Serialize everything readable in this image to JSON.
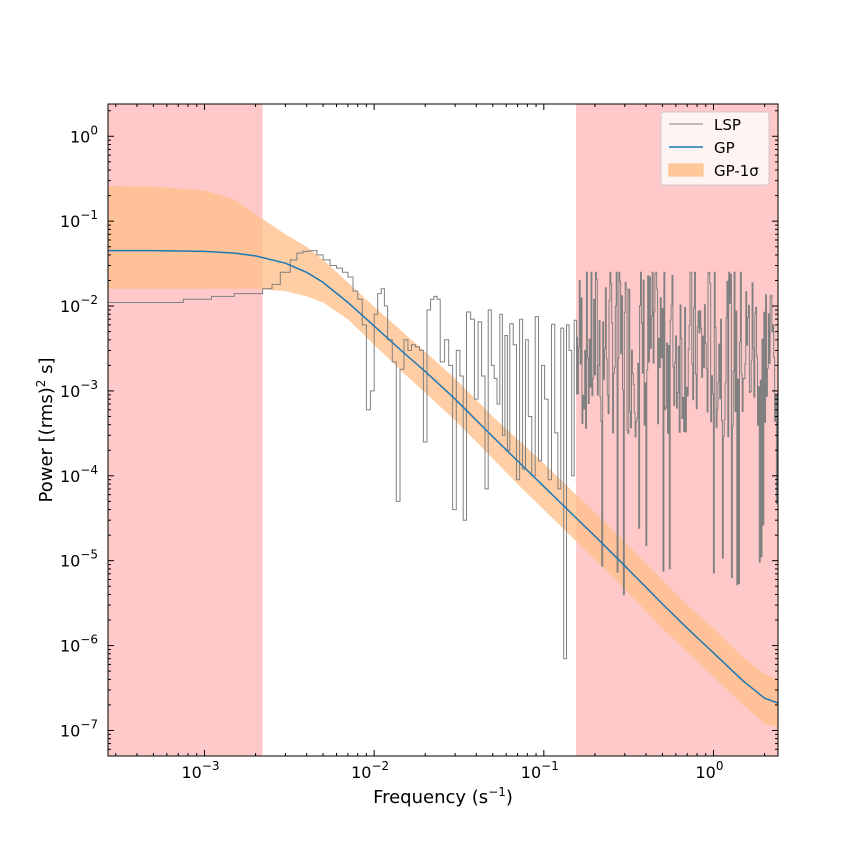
{
  "chart_data": {
    "type": "line",
    "title": "",
    "xlabel": "Frequency (s$^{-1}$)",
    "ylabel": "Power [(rms)$^2$ s]",
    "xscale": "log",
    "yscale": "log",
    "xlim": [
      0.00027,
      2.4
    ],
    "ylim": [
      5e-08,
      2.4
    ],
    "grid": false,
    "legend_position": "top-right",
    "x_tick_labels": [
      "10^-3",
      "10^-2",
      "10^-1",
      "10^0"
    ],
    "y_tick_labels": [
      "10^-7",
      "10^-6",
      "10^-5",
      "10^-4",
      "10^-3",
      "10^-2",
      "10^-1",
      "10^0"
    ],
    "shaded_regions": [
      {
        "x_start": 0.00027,
        "x_end": 0.0022,
        "color": "#ffc9c9"
      },
      {
        "x_start": 0.155,
        "x_end": 2.4,
        "color": "#ffc9c9"
      }
    ],
    "series": [
      {
        "name": "LSP",
        "kind": "step",
        "color": "#808080",
        "x": [
          0.00027,
          0.00075,
          0.0011,
          0.0015,
          0.0022,
          0.0025,
          0.0028,
          0.0032,
          0.0035,
          0.0038,
          0.0042,
          0.0046,
          0.005,
          0.0055,
          0.006,
          0.0065,
          0.007,
          0.0075,
          0.008,
          0.0085,
          0.009,
          0.0095,
          0.01,
          0.0105,
          0.011,
          0.0115,
          0.012,
          0.0128,
          0.0135,
          0.0142,
          0.015,
          0.0158,
          0.0166,
          0.0175,
          0.0185,
          0.0195,
          0.0205,
          0.0215,
          0.0225,
          0.0235,
          0.0245,
          0.026,
          0.0275,
          0.029,
          0.0305,
          0.032,
          0.0335,
          0.035,
          0.037,
          0.039,
          0.041,
          0.043,
          0.045,
          0.047,
          0.049,
          0.051,
          0.053,
          0.055,
          0.057,
          0.059,
          0.061,
          0.063,
          0.066,
          0.069,
          0.072,
          0.075,
          0.078,
          0.081,
          0.085,
          0.089,
          0.093,
          0.097,
          0.101,
          0.106,
          0.111,
          0.116,
          0.121,
          0.126,
          0.131,
          0.136,
          0.141,
          0.146,
          0.151,
          0.156
        ],
        "y": [
          0.011,
          0.012,
          0.013,
          0.014,
          0.016,
          0.018,
          0.025,
          0.035,
          0.042,
          0.044,
          0.045,
          0.04,
          0.035,
          0.03,
          0.028,
          0.025,
          0.022,
          0.015,
          0.012,
          0.006,
          0.0006,
          0.001,
          0.008,
          0.014,
          0.016,
          0.01,
          0.004,
          0.0022,
          5e-05,
          0.0018,
          0.004,
          0.003,
          0.0035,
          0.0033,
          0.003,
          0.00025,
          0.009,
          0.012,
          0.013,
          0.012,
          0.0022,
          0.004,
          0.002,
          4e-05,
          0.003,
          0.0015,
          3e-05,
          0.0085,
          0.007,
          0.0008,
          0.0065,
          0.0015,
          7e-05,
          0.009,
          0.002,
          0.0014,
          0.0007,
          0.008,
          0.0003,
          0.0045,
          0.0002,
          0.0062,
          0.0035,
          9e-05,
          0.007,
          0.00012,
          0.004,
          0.0005,
          0.0001,
          0.0075,
          0.00015,
          0.002,
          0.0008,
          9e-05,
          0.0061,
          0.00032,
          7e-05,
          0.0055,
          7e-07,
          0.006,
          0.003,
          0.0001,
          0.0068,
          0.0009
        ]
      },
      {
        "name": "GP",
        "kind": "line",
        "color": "#1f77b4",
        "x": [
          0.00027,
          0.0005,
          0.001,
          0.0015,
          0.002,
          0.003,
          0.004,
          0.005,
          0.007,
          0.01,
          0.015,
          0.02,
          0.03,
          0.05,
          0.07,
          0.1,
          0.15,
          0.2,
          0.3,
          0.5,
          0.7,
          1.0,
          1.5,
          2.0,
          2.4
        ],
        "y": [
          0.045,
          0.045,
          0.044,
          0.042,
          0.039,
          0.032,
          0.025,
          0.019,
          0.011,
          0.0058,
          0.0028,
          0.0017,
          0.0008,
          0.00029,
          0.00015,
          7.5e-05,
          3.4e-05,
          1.95e-05,
          8.7e-06,
          3.1e-06,
          1.6e-06,
          8.2e-07,
          3.8e-07,
          2.4e-07,
          2.1e-07
        ]
      },
      {
        "name": "GP-1$\\sigma$",
        "kind": "band",
        "color": "#ffbe85",
        "x": [
          0.00027,
          0.0005,
          0.001,
          0.0015,
          0.002,
          0.003,
          0.004,
          0.005,
          0.007,
          0.01,
          0.015,
          0.02,
          0.03,
          0.05,
          0.07,
          0.1,
          0.15,
          0.2,
          0.3,
          0.5,
          0.7,
          1.0,
          1.5,
          2.0,
          2.4
        ],
        "y_lower": [
          0.016,
          0.016,
          0.016,
          0.016,
          0.016,
          0.015,
          0.013,
          0.011,
          0.007,
          0.0035,
          0.0016,
          0.00095,
          0.00045,
          0.00016,
          8e-05,
          4e-05,
          1.8e-05,
          1.03e-05,
          4.6e-06,
          1.6e-06,
          8.4e-07,
          4.3e-07,
          2e-07,
          1.2e-07,
          1.1e-07
        ],
        "y_upper": [
          0.26,
          0.255,
          0.23,
          0.18,
          0.12,
          0.07,
          0.05,
          0.035,
          0.019,
          0.0098,
          0.0048,
          0.0029,
          0.0014,
          0.0005,
          0.00027,
          0.00014,
          6.4e-05,
          3.7e-05,
          1.66e-05,
          5.9e-06,
          3e-06,
          1.6e-06,
          7.2e-07,
          4.6e-07,
          4e-07
        ]
      }
    ],
    "noise_region": {
      "description_color": "#808080",
      "x_start": 0.156,
      "x_end": 2.4,
      "y_center_log": -2.6,
      "y_min": 2.5e-06,
      "y_max": 0.025
    }
  },
  "legend": {
    "items": [
      {
        "label": "LSP"
      },
      {
        "label": "GP"
      },
      {
        "label": "GP-1σ"
      }
    ]
  },
  "axes": {
    "xlabel_text": "Frequency (s",
    "xlabel_sup": "−1",
    "xlabel_end": ")",
    "ylabel_text": "Power [(rms)",
    "ylabel_sup": "2",
    "ylabel_end": " s]"
  }
}
